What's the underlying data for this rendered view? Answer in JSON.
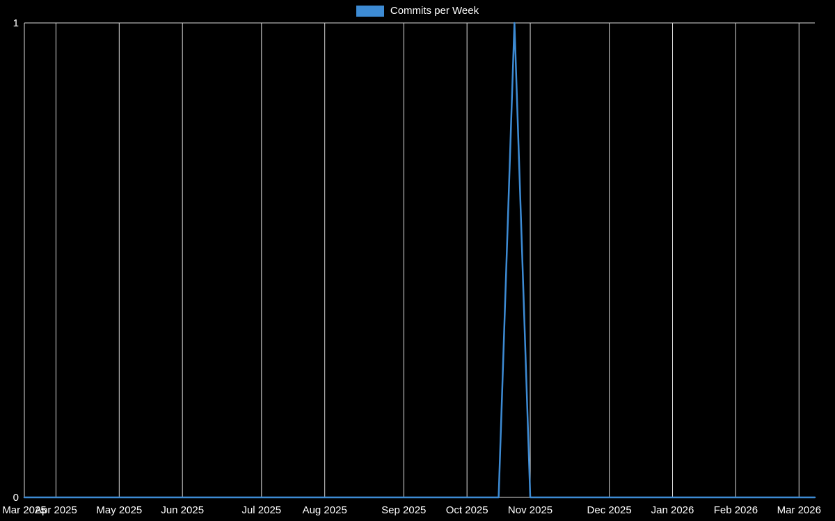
{
  "chart_data": {
    "type": "line",
    "title": "Commits per Week",
    "legend_position": "top",
    "grid": true,
    "background": "#000000",
    "line_color": "#3d8bd4",
    "grid_color": "#dddddd",
    "text_color": "#ffffff",
    "xlabel": "",
    "ylabel": "",
    "ylim": [
      0,
      1
    ],
    "y_ticks": [
      {
        "label": "1",
        "value": 1
      },
      {
        "label": "0",
        "value": 0
      }
    ],
    "x_ticks": [
      {
        "label": "Mar 2025",
        "week_index": 0
      },
      {
        "label": "Apr 2025",
        "week_index": 2
      },
      {
        "label": "May 2025",
        "week_index": 6
      },
      {
        "label": "Jun 2025",
        "week_index": 10
      },
      {
        "label": "Jul 2025",
        "week_index": 15
      },
      {
        "label": "Aug 2025",
        "week_index": 19
      },
      {
        "label": "Sep 2025",
        "week_index": 24
      },
      {
        "label": "Oct 2025",
        "week_index": 28
      },
      {
        "label": "Nov 2025",
        "week_index": 32
      },
      {
        "label": "Dec 2025",
        "week_index": 37
      },
      {
        "label": "Jan 2026",
        "week_index": 41
      },
      {
        "label": "Feb 2026",
        "week_index": 45
      },
      {
        "label": "Mar 2026",
        "week_index": 49
      }
    ],
    "series": [
      {
        "name": "Commits per Week",
        "color": "#3d8bd4",
        "x": [
          "2025-03-23",
          "2025-03-30",
          "2025-04-06",
          "2025-04-13",
          "2025-04-20",
          "2025-04-27",
          "2025-05-04",
          "2025-05-11",
          "2025-05-18",
          "2025-05-25",
          "2025-06-01",
          "2025-06-08",
          "2025-06-15",
          "2025-06-22",
          "2025-06-29",
          "2025-07-06",
          "2025-07-13",
          "2025-07-20",
          "2025-07-27",
          "2025-08-03",
          "2025-08-10",
          "2025-08-17",
          "2025-08-24",
          "2025-08-31",
          "2025-09-07",
          "2025-09-14",
          "2025-09-21",
          "2025-09-28",
          "2025-10-05",
          "2025-10-12",
          "2025-10-19",
          "2025-10-26",
          "2025-11-02",
          "2025-11-09",
          "2025-11-16",
          "2025-11-23",
          "2025-11-30",
          "2025-12-07",
          "2025-12-14",
          "2025-12-21",
          "2025-12-28",
          "2026-01-04",
          "2026-01-11",
          "2026-01-18",
          "2026-01-25",
          "2026-02-01",
          "2026-02-08",
          "2026-02-15",
          "2026-02-22",
          "2026-03-01",
          "2026-03-08"
        ],
        "values": [
          0,
          0,
          0,
          0,
          0,
          0,
          0,
          0,
          0,
          0,
          0,
          0,
          0,
          0,
          0,
          0,
          0,
          0,
          0,
          0,
          0,
          0,
          0,
          0,
          0,
          0,
          0,
          0,
          0,
          0,
          0,
          1,
          0,
          0,
          0,
          0,
          0,
          0,
          0,
          0,
          0,
          0,
          0,
          0,
          0,
          0,
          0,
          0,
          0,
          0,
          0
        ]
      }
    ],
    "peak_week": {
      "date": "2025-10-26",
      "value": 1
    }
  }
}
